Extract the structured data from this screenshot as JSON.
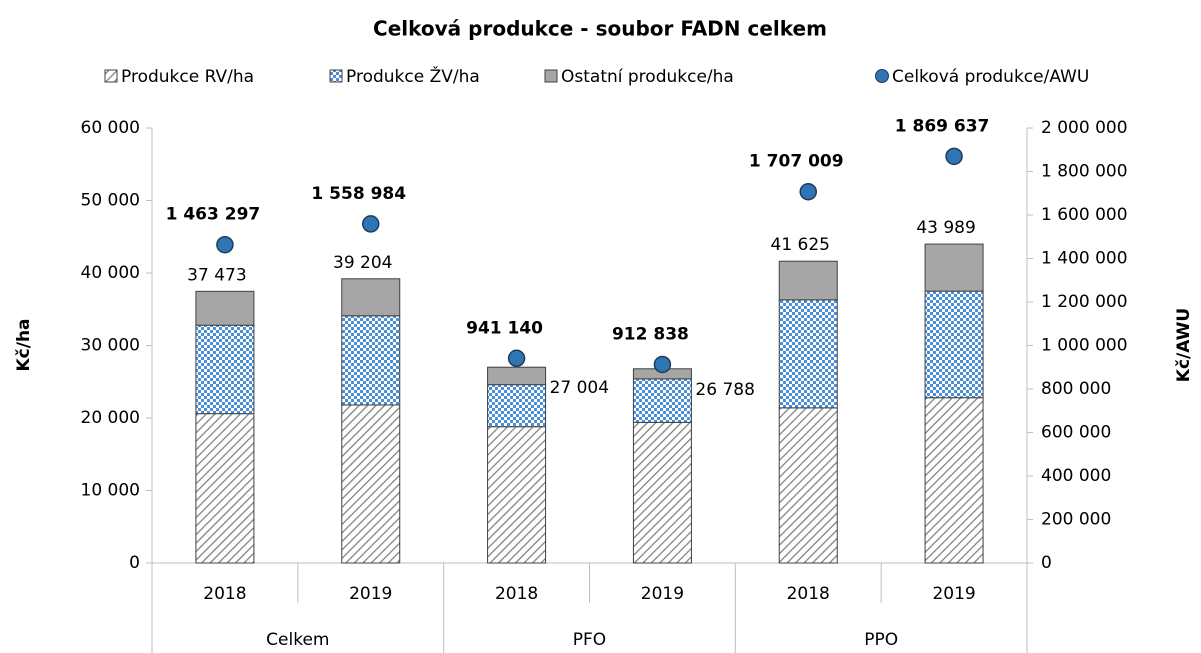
{
  "chart_data": {
    "type": "bar",
    "title": "Celková produkce - soubor FADN celkem",
    "y_label": "Kč/ha",
    "y2_label": "Kč/AWU",
    "categories": [
      "2018",
      "2019",
      "2018",
      "2019",
      "2018",
      "2019"
    ],
    "groups": [
      "Celkem",
      "PFO",
      "PPO"
    ],
    "series": [
      {
        "name": "Produkce RV/ha",
        "color": "#7f7f7f",
        "pattern": "hatch",
        "values": [
          20600,
          21800,
          18800,
          19400,
          21400,
          22800
        ]
      },
      {
        "name": "Produkce ŽV/ha",
        "color": "#4a90d9",
        "pattern": "checker",
        "values": [
          12200,
          12300,
          5800,
          6000,
          14900,
          14700
        ]
      },
      {
        "name": "Ostatní produkce/ha",
        "color": "#a6a6a6",
        "values": [
          4673,
          5104,
          2404,
          1388,
          5325,
          6489
        ]
      },
      {
        "name": "Celková produkce/AWU",
        "type": "scatter",
        "axis": "y2",
        "color": "#2e75b6",
        "label_color": "#1f3b73",
        "values": [
          1463297,
          1558984,
          941140,
          912838,
          1707009,
          1869637
        ],
        "value_labels": [
          "1 463 297",
          "1 558 984",
          "941 140",
          "912 838",
          "1 707 009",
          "1 869 637"
        ]
      }
    ],
    "totals": [
      37473,
      39204,
      27004,
      26788,
      41625,
      43989
    ],
    "total_labels": [
      "37 473",
      "39 204",
      "27 004",
      "26 788",
      "41 625",
      "43 989"
    ],
    "ylim": [
      0,
      60000
    ],
    "yticks": [
      0,
      {
        "value": 10000,
        "label": "10 000"
      },
      {
        "value": 20000,
        "label": "20 000"
      },
      {
        "value": 30000,
        "label": "30 000"
      },
      {
        "value": 40000,
        "label": "40 000"
      },
      {
        "value": 50000,
        "label": "50 000"
      },
      {
        "value": 60000,
        "label": "60 000"
      }
    ],
    "y2lim": [
      0,
      2000000
    ],
    "y2ticks": [
      0,
      {
        "value": 200000,
        "label": "200 000"
      },
      {
        "value": 400000,
        "label": "400 000"
      },
      {
        "value": 600000,
        "label": "600 000"
      },
      {
        "value": 800000,
        "label": "800 000"
      },
      {
        "value": 1000000,
        "label": "1 000 000"
      },
      {
        "value": 1200000,
        "label": "1 200 000"
      },
      {
        "value": 1400000,
        "label": "1 400 000"
      },
      {
        "value": 1600000,
        "label": "1 600 000"
      },
      {
        "value": 1800000,
        "label": "1 800 000"
      },
      {
        "value": 2000000,
        "label": "2 000 000"
      }
    ],
    "grid": false,
    "legend": "top"
  }
}
